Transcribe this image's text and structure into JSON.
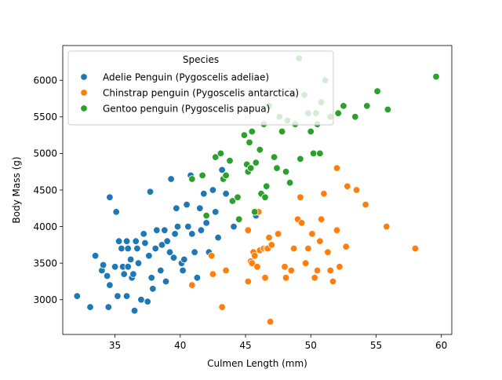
{
  "chart_data": {
    "type": "scatter",
    "title": "",
    "xlabel": "Culmen Length (mm)",
    "ylabel": "Body Mass (g)",
    "xlim": [
      31,
      60.8
    ],
    "ylim": [
      2525,
      6475
    ],
    "xticks": [
      35,
      40,
      45,
      50,
      55,
      60
    ],
    "yticks": [
      3000,
      3500,
      4000,
      4500,
      5000,
      5500,
      6000
    ],
    "grid": false,
    "legend": {
      "title": "Species",
      "placement": "top-left"
    },
    "series": [
      {
        "name": "Adelie Penguin (Pygoscelis adeliae)",
        "color": "#1f77b4",
        "points": [
          [
            32.1,
            3050
          ],
          [
            33.1,
            2900
          ],
          [
            33.5,
            3600
          ],
          [
            34.0,
            3400
          ],
          [
            34.1,
            3475
          ],
          [
            34.4,
            3325
          ],
          [
            34.5,
            2900
          ],
          [
            34.6,
            4400
          ],
          [
            34.6,
            3200
          ],
          [
            35.0,
            3450
          ],
          [
            35.1,
            4200
          ],
          [
            35.2,
            3050
          ],
          [
            35.3,
            3800
          ],
          [
            35.5,
            3700
          ],
          [
            35.6,
            3450
          ],
          [
            35.7,
            3350
          ],
          [
            35.9,
            3050
          ],
          [
            35.9,
            3800
          ],
          [
            36.0,
            3450
          ],
          [
            36.0,
            3700
          ],
          [
            36.2,
            3550
          ],
          [
            36.3,
            3300
          ],
          [
            36.4,
            3350
          ],
          [
            36.5,
            2850
          ],
          [
            36.6,
            3800
          ],
          [
            36.7,
            3700
          ],
          [
            36.8,
            3500
          ],
          [
            37.0,
            3000
          ],
          [
            37.2,
            3900
          ],
          [
            37.3,
            3775
          ],
          [
            37.5,
            2975
          ],
          [
            37.6,
            3600
          ],
          [
            37.7,
            4475
          ],
          [
            37.8,
            3300
          ],
          [
            37.9,
            3150
          ],
          [
            38.1,
            3700
          ],
          [
            38.2,
            3950
          ],
          [
            38.5,
            3400
          ],
          [
            38.6,
            3750
          ],
          [
            38.8,
            3950
          ],
          [
            38.9,
            3250
          ],
          [
            39.0,
            3800
          ],
          [
            39.2,
            3650
          ],
          [
            39.3,
            4650
          ],
          [
            39.5,
            3575
          ],
          [
            39.6,
            3900
          ],
          [
            39.7,
            4250
          ],
          [
            39.8,
            4000
          ],
          [
            40.1,
            3500
          ],
          [
            40.2,
            3400
          ],
          [
            40.3,
            3550
          ],
          [
            40.5,
            4300
          ],
          [
            40.6,
            4000
          ],
          [
            40.8,
            4700
          ],
          [
            40.9,
            3900
          ],
          [
            41.1,
            3650
          ],
          [
            41.3,
            3300
          ],
          [
            41.5,
            4250
          ],
          [
            41.6,
            3950
          ],
          [
            41.8,
            4450
          ],
          [
            42.0,
            4050
          ],
          [
            42.2,
            3650
          ],
          [
            42.5,
            4500
          ],
          [
            42.7,
            4200
          ],
          [
            42.9,
            3850
          ],
          [
            43.2,
            4775
          ],
          [
            43.5,
            4450
          ],
          [
            44.1,
            4000
          ],
          [
            45.8,
            4150
          ],
          [
            46.0,
            4200
          ]
        ]
      },
      {
        "name": "Chinstrap penguin (Pygoscelis antarctica)",
        "color": "#ff7f0e",
        "points": [
          [
            40.9,
            3200
          ],
          [
            42.4,
            3600
          ],
          [
            42.5,
            3350
          ],
          [
            43.2,
            2900
          ],
          [
            43.5,
            3400
          ],
          [
            45.2,
            3950
          ],
          [
            45.2,
            3250
          ],
          [
            45.4,
            3525
          ],
          [
            45.5,
            3500
          ],
          [
            45.6,
            3650
          ],
          [
            45.7,
            3600
          ],
          [
            45.9,
            3450
          ],
          [
            46.0,
            4200
          ],
          [
            46.1,
            3675
          ],
          [
            46.4,
            3700
          ],
          [
            46.5,
            3300
          ],
          [
            46.6,
            3700
          ],
          [
            46.7,
            3700
          ],
          [
            46.8,
            3850
          ],
          [
            46.9,
            2700
          ],
          [
            47.0,
            3750
          ],
          [
            47.5,
            3900
          ],
          [
            48.0,
            3450
          ],
          [
            48.1,
            3300
          ],
          [
            48.5,
            3400
          ],
          [
            48.7,
            3700
          ],
          [
            49.0,
            4100
          ],
          [
            49.2,
            4400
          ],
          [
            49.3,
            4050
          ],
          [
            49.6,
            3500
          ],
          [
            49.8,
            3700
          ],
          [
            50.1,
            3900
          ],
          [
            50.3,
            3300
          ],
          [
            50.5,
            3400
          ],
          [
            50.7,
            3800
          ],
          [
            50.8,
            4100
          ],
          [
            51.0,
            4450
          ],
          [
            51.3,
            3650
          ],
          [
            51.5,
            3400
          ],
          [
            51.7,
            3250
          ],
          [
            52.0,
            3950
          ],
          [
            52.0,
            4800
          ],
          [
            52.2,
            3450
          ],
          [
            52.7,
            3725
          ],
          [
            52.8,
            4550
          ],
          [
            53.5,
            4500
          ],
          [
            54.2,
            4300
          ],
          [
            55.8,
            4000
          ],
          [
            58.0,
            3700
          ]
        ]
      },
      {
        "name": "Gentoo penguin (Pygoscelis papua)",
        "color": "#2ca02c",
        "points": [
          [
            40.9,
            4650
          ],
          [
            41.7,
            4700
          ],
          [
            42.0,
            4150
          ],
          [
            42.7,
            4950
          ],
          [
            43.1,
            5000
          ],
          [
            43.3,
            4650
          ],
          [
            43.5,
            4700
          ],
          [
            43.8,
            4900
          ],
          [
            44.0,
            4350
          ],
          [
            44.4,
            4400
          ],
          [
            44.5,
            4100
          ],
          [
            44.9,
            5250
          ],
          [
            45.1,
            4850
          ],
          [
            45.2,
            4750
          ],
          [
            45.3,
            5150
          ],
          [
            45.4,
            4800
          ],
          [
            45.5,
            5300
          ],
          [
            45.7,
            4200
          ],
          [
            45.8,
            4875
          ],
          [
            46.1,
            5050
          ],
          [
            46.2,
            4450
          ],
          [
            46.4,
            5400
          ],
          [
            46.5,
            4400
          ],
          [
            46.6,
            4550
          ],
          [
            46.8,
            5650
          ],
          [
            47.2,
            4950
          ],
          [
            47.4,
            4800
          ],
          [
            47.6,
            5500
          ],
          [
            47.8,
            5300
          ],
          [
            48.1,
            4750
          ],
          [
            48.2,
            5450
          ],
          [
            48.4,
            4600
          ],
          [
            48.6,
            5800
          ],
          [
            48.8,
            5400
          ],
          [
            49.1,
            6300
          ],
          [
            49.2,
            4925
          ],
          [
            49.5,
            5800
          ],
          [
            49.8,
            5550
          ],
          [
            50.0,
            5300
          ],
          [
            50.2,
            5000
          ],
          [
            50.4,
            5550
          ],
          [
            50.5,
            5400
          ],
          [
            50.7,
            5000
          ],
          [
            50.8,
            5700
          ],
          [
            51.1,
            6000
          ],
          [
            51.5,
            5500
          ],
          [
            52.1,
            5550
          ],
          [
            52.5,
            5650
          ],
          [
            53.4,
            5500
          ],
          [
            54.3,
            5650
          ],
          [
            55.1,
            5850
          ],
          [
            55.9,
            5600
          ],
          [
            59.6,
            6050
          ]
        ]
      }
    ]
  }
}
